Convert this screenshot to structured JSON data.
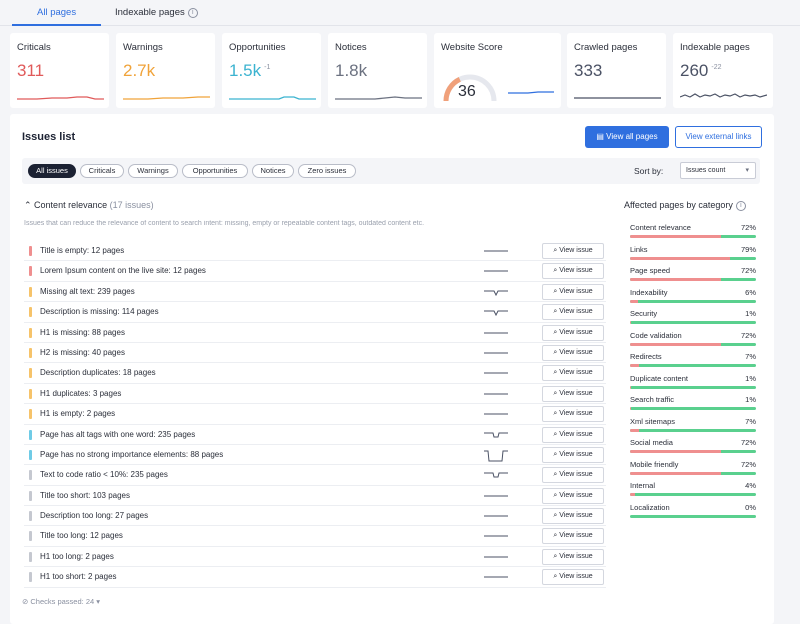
{
  "tabs": [
    {
      "label": "All pages",
      "active": true
    },
    {
      "label": "Indexable pages",
      "active": false,
      "icon": "info-icon"
    }
  ],
  "stats": [
    {
      "id": "criticals",
      "label": "Criticals",
      "value": "311",
      "delta": "",
      "color": "#e05a5a"
    },
    {
      "id": "warnings",
      "label": "Warnings",
      "value": "2.7k",
      "delta": "",
      "color": "#f0a33a"
    },
    {
      "id": "opportunities",
      "label": "Opportunities",
      "value": "1.5k",
      "delta": "-1",
      "color": "#3bb3d0"
    },
    {
      "id": "notices",
      "label": "Notices",
      "value": "1.8k",
      "delta": "",
      "color": "#6b7180"
    },
    {
      "id": "website-score",
      "label": "Website Score",
      "value": "36",
      "delta": "",
      "color": "#2b2f3a",
      "score": 36
    },
    {
      "id": "crawled",
      "label": "Crawled pages",
      "value": "333",
      "delta": "",
      "color": "#4b5265"
    },
    {
      "id": "indexable",
      "label": "Indexable pages",
      "value": "260",
      "delta": "-22",
      "color": "#4b5265"
    }
  ],
  "issues": {
    "title": "Issues list",
    "view_all_label": "View all pages",
    "view_external_label": "View external links",
    "filters": [
      "All issues",
      "Criticals",
      "Warnings",
      "Opportunities",
      "Notices",
      "Zero issues"
    ],
    "active_filter": "All issues",
    "sort_label": "Sort by:",
    "sort_value": "Issues count",
    "section": {
      "title": "Content relevance",
      "count": "(17 issues)",
      "description": "Issues that can reduce the relevance of content to search intent: missing, empty or repeatable content tags, outdated content etc."
    },
    "view_issue_label": "View issue",
    "rows": [
      {
        "name": "Title is empty:",
        "count": "12 pages",
        "severity": "critical",
        "spark": "flat"
      },
      {
        "name": "Lorem Ipsum content on the live site:",
        "count": "12 pages",
        "severity": "critical",
        "spark": "flat"
      },
      {
        "name": "Missing alt text:",
        "count": "239 pages",
        "severity": "warning",
        "spark": "dip"
      },
      {
        "name": "Description is missing:",
        "count": "114 pages",
        "severity": "warning",
        "spark": "dip"
      },
      {
        "name": "H1 is missing:",
        "count": "88 pages",
        "severity": "warning",
        "spark": "flat"
      },
      {
        "name": "H2 is missing:",
        "count": "40 pages",
        "severity": "warning",
        "spark": "flat"
      },
      {
        "name": "Description duplicates:",
        "count": "18 pages",
        "severity": "warning",
        "spark": "flat"
      },
      {
        "name": "H1 duplicates:",
        "count": "3 pages",
        "severity": "warning",
        "spark": "flat"
      },
      {
        "name": "H1 is empty:",
        "count": "2 pages",
        "severity": "warning",
        "spark": "flat"
      },
      {
        "name": "Page has alt tags with one word:",
        "count": "235 pages",
        "severity": "opportunity",
        "spark": "drop"
      },
      {
        "name": "Page has no strong importance elements:",
        "count": "88 pages",
        "severity": "opportunity",
        "spark": "bigdrop"
      },
      {
        "name": "Text to code ratio < 10%:",
        "count": "235 pages",
        "severity": "notice",
        "spark": "drop"
      },
      {
        "name": "Title too short:",
        "count": "103 pages",
        "severity": "notice",
        "spark": "flat"
      },
      {
        "name": "Description too long:",
        "count": "27 pages",
        "severity": "notice",
        "spark": "flat"
      },
      {
        "name": "Title too long:",
        "count": "12 pages",
        "severity": "notice",
        "spark": "flat"
      },
      {
        "name": "H1 too long:",
        "count": "2 pages",
        "severity": "notice",
        "spark": "flat"
      },
      {
        "name": "H1 too short:",
        "count": "2 pages",
        "severity": "notice",
        "spark": "flat"
      }
    ],
    "checks_passed": "Checks passed: 24"
  },
  "affected": {
    "title": "Affected pages by category",
    "items": [
      {
        "name": "Content relevance",
        "pct": "72%",
        "value": 72
      },
      {
        "name": "Links",
        "pct": "79%",
        "value": 79
      },
      {
        "name": "Page speed",
        "pct": "72%",
        "value": 72
      },
      {
        "name": "Indexability",
        "pct": "6%",
        "value": 6
      },
      {
        "name": "Security",
        "pct": "1%",
        "value": 1
      },
      {
        "name": "Code validation",
        "pct": "72%",
        "value": 72
      },
      {
        "name": "Redirects",
        "pct": "7%",
        "value": 7
      },
      {
        "name": "Duplicate content",
        "pct": "1%",
        "value": 1
      },
      {
        "name": "Search traffic",
        "pct": "1%",
        "value": 1
      },
      {
        "name": "Xml sitemaps",
        "pct": "7%",
        "value": 7
      },
      {
        "name": "Social media",
        "pct": "72%",
        "value": 72
      },
      {
        "name": "Mobile friendly",
        "pct": "72%",
        "value": 72
      },
      {
        "name": "Internal",
        "pct": "4%",
        "value": 4
      },
      {
        "name": "Localization",
        "pct": "0%",
        "value": 0
      }
    ]
  },
  "colors": {
    "accent": "#2f6fdf",
    "critical": "#ef8f8f",
    "warning": "#f6c36a",
    "opportunity": "#6fcbe6",
    "notice": "#c5c8d0",
    "ok": "#5ad08e"
  }
}
